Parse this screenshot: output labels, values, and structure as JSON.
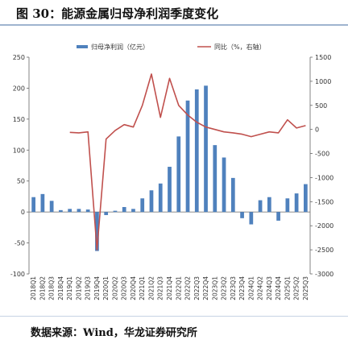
{
  "title": "图 30：能源金属归母净利润季度变化",
  "source": "数据来源：Wind，华龙证券研究所",
  "chart_data": {
    "type": "bar+line",
    "categories": [
      "2018Q1",
      "2018Q2",
      "2018Q3",
      "2018Q4",
      "2019Q1",
      "2019Q2",
      "2019Q3",
      "2019Q4",
      "2020Q1",
      "2020Q2",
      "2020Q3",
      "2020Q4",
      "2021Q1",
      "2021Q2",
      "2021Q3",
      "2021Q4",
      "2022Q1",
      "2022Q2",
      "2022Q3",
      "2022Q4",
      "2023Q1",
      "2023Q2",
      "2023Q3",
      "2023Q4",
      "2024Q1",
      "2024Q2",
      "2024Q3",
      "2024Q4",
      "2025Q1",
      "2025Q2",
      "2025Q3"
    ],
    "series": [
      {
        "name": "归母净利润（亿元）",
        "type": "bar",
        "axis": "left",
        "color": "#4f81bd",
        "values": [
          24,
          29,
          18,
          3,
          5,
          5,
          4,
          -63,
          -5,
          2,
          8,
          5,
          22,
          35,
          46,
          73,
          122,
          180,
          198,
          204,
          108,
          88,
          55,
          -10,
          -20,
          19,
          24,
          -14,
          22,
          30,
          45
        ]
      },
      {
        "name": "同比（%，右轴）",
        "type": "line",
        "axis": "right",
        "color": "#c0504d",
        "values": [
          null,
          null,
          null,
          null,
          -60,
          -70,
          -50,
          -2500,
          -200,
          -20,
          100,
          50,
          500,
          1150,
          250,
          1060,
          500,
          300,
          150,
          50,
          0,
          -50,
          -70,
          -100,
          -150,
          -100,
          -50,
          -70,
          200,
          30,
          80
        ]
      }
    ],
    "y_left": {
      "min": -100,
      "max": 250,
      "ticks": [
        -100,
        -50,
        0,
        50,
        100,
        150,
        200,
        250
      ]
    },
    "y_right": {
      "min": -3000,
      "max": 1500,
      "ticks": [
        -3000,
        -2500,
        -2000,
        -1500,
        -1000,
        -500,
        0,
        500,
        1000,
        1500
      ]
    },
    "legend_position": "top"
  }
}
